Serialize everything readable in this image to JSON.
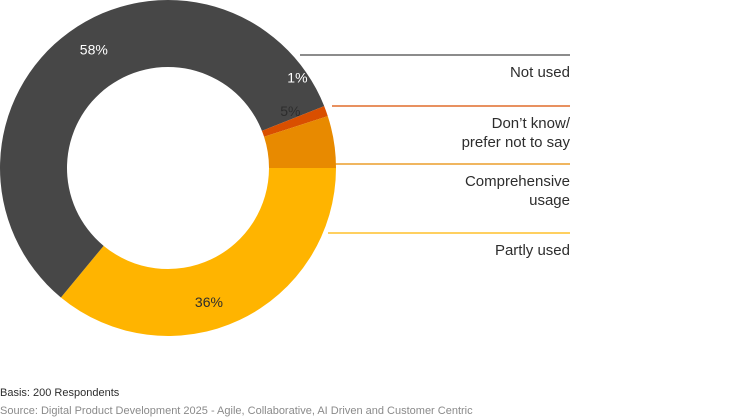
{
  "chart_data": {
    "type": "pie",
    "donut": true,
    "categories": [
      "Not used",
      "Don’t know/ prefer not to say",
      "Comprehensive usage",
      "Partly used"
    ],
    "values": [
      58,
      1,
      5,
      36
    ],
    "value_labels": [
      "58%",
      "1%",
      "5%",
      "36%"
    ],
    "colors": [
      "#474747",
      "#d94f00",
      "#e88a00",
      "#ffb400"
    ],
    "legend": [
      {
        "lines": [
          "Not used"
        ],
        "color": "#474747"
      },
      {
        "lines": [
          "Don’t know/",
          "prefer not to say"
        ],
        "color": "#d94f00"
      },
      {
        "lines": [
          "Comprehensive",
          "usage"
        ],
        "color": "#e88a00"
      },
      {
        "lines": [
          "Partly used"
        ],
        "color": "#ffb400"
      }
    ],
    "legend_placement": "right"
  },
  "footer": {
    "basis": "Basis: 200 Respondents",
    "source": "Source: Digital Product Development 2025 - Agile, Collaborative, AI Driven and Customer Centric"
  }
}
